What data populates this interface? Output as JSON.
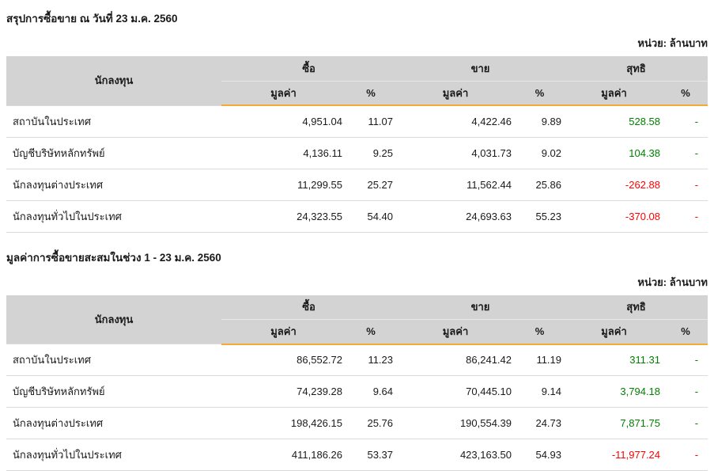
{
  "columns": {
    "investor": "นักลงทุน",
    "buy": "ซื้อ",
    "sell": "ขาย",
    "net": "สุทธิ",
    "value": "มูลค่า",
    "percent": "%"
  },
  "colors": {
    "positive": "#008000",
    "negative": "#ff0000",
    "accent": "#f3aa36",
    "header_bg": "#d3d3d3",
    "row_border": "#dadada"
  },
  "tables": [
    {
      "title": "สรุปการซื้อขาย ณ วันที่ 23 ม.ค. 2560",
      "unit_label": "หน่วย: ล้านบาท",
      "rows": [
        {
          "investor": "สถาบันในประเทศ",
          "buy_value": "4,951.04",
          "buy_pct": "11.07",
          "sell_value": "4,422.46",
          "sell_pct": "9.89",
          "net_value": "528.58",
          "net_pct": "-"
        },
        {
          "investor": "บัญชีบริษัทหลักทรัพย์",
          "buy_value": "4,136.11",
          "buy_pct": "9.25",
          "sell_value": "4,031.73",
          "sell_pct": "9.02",
          "net_value": "104.38",
          "net_pct": "-"
        },
        {
          "investor": "นักลงทุนต่างประเทศ",
          "buy_value": "11,299.55",
          "buy_pct": "25.27",
          "sell_value": "11,562.44",
          "sell_pct": "25.86",
          "net_value": "-262.88",
          "net_pct": "-"
        },
        {
          "investor": "นักลงทุนทั่วไปในประเทศ",
          "buy_value": "24,323.55",
          "buy_pct": "54.40",
          "sell_value": "24,693.63",
          "sell_pct": "55.23",
          "net_value": "-370.08",
          "net_pct": "-"
        }
      ]
    },
    {
      "title": "มูลค่าการซื้อขายสะสมในช่วง 1 - 23 ม.ค. 2560",
      "unit_label": "หน่วย: ล้านบาท",
      "rows": [
        {
          "investor": "สถาบันในประเทศ",
          "buy_value": "86,552.72",
          "buy_pct": "11.23",
          "sell_value": "86,241.42",
          "sell_pct": "11.19",
          "net_value": "311.31",
          "net_pct": "-"
        },
        {
          "investor": "บัญชีบริษัทหลักทรัพย์",
          "buy_value": "74,239.28",
          "buy_pct": "9.64",
          "sell_value": "70,445.10",
          "sell_pct": "9.14",
          "net_value": "3,794.18",
          "net_pct": "-"
        },
        {
          "investor": "นักลงทุนต่างประเทศ",
          "buy_value": "198,426.15",
          "buy_pct": "25.76",
          "sell_value": "190,554.39",
          "sell_pct": "24.73",
          "net_value": "7,871.75",
          "net_pct": "-"
        },
        {
          "investor": "นักลงทุนทั่วไปในประเทศ",
          "buy_value": "411,186.26",
          "buy_pct": "53.37",
          "sell_value": "423,163.50",
          "sell_pct": "54.93",
          "net_value": "-11,977.24",
          "net_pct": "-"
        }
      ]
    }
  ]
}
